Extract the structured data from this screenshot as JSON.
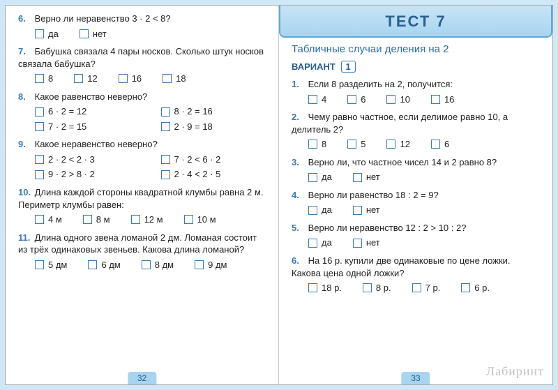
{
  "left": {
    "pagenum": "32",
    "q6": {
      "num": "6.",
      "text": "Верно ли неравенство 3 · 2 < 8?",
      "a": "да",
      "b": "нет"
    },
    "q7": {
      "num": "7.",
      "text": "Бабушка связала 4 пары носков. Сколько штук носков связала бабушка?",
      "a": "8",
      "b": "12",
      "c": "16",
      "d": "18"
    },
    "q8": {
      "num": "8.",
      "text": "Какое равенство неверно?",
      "a": "6 · 2 = 12",
      "b": "8 · 2 = 16",
      "c": "7 · 2 = 15",
      "d": "2 · 9 = 18"
    },
    "q9": {
      "num": "9.",
      "text": "Какое неравенство неверно?",
      "a": "2 · 2 < 2 · 3",
      "b": "7 · 2 < 6 · 2",
      "c": "9 · 2 > 8 · 2",
      "d": "2 · 4 < 2 · 5"
    },
    "q10": {
      "num": "10.",
      "text": "Длина каждой стороны квадратной клумбы равна 2 м. Периметр клумбы равен:",
      "a": "4 м",
      "b": "8 м",
      "c": "12 м",
      "d": "10 м"
    },
    "q11": {
      "num": "11.",
      "text": "Длина одного звена ломаной 2 дм. Ломаная состоит из трёх одинаковых звеньев. Какова длина ломаной?",
      "a": "5 дм",
      "b": "6 дм",
      "c": "8 дм",
      "d": "9 дм"
    }
  },
  "right": {
    "pagenum": "33",
    "header": "ТЕСТ 7",
    "subtitle": "Табличные случаи деления на 2",
    "variant_label": "ВАРИАНТ",
    "variant_num": "1",
    "q1": {
      "num": "1.",
      "text": "Если 8 разделить на 2, получится:",
      "a": "4",
      "b": "6",
      "c": "10",
      "d": "16"
    },
    "q2": {
      "num": "2.",
      "text": "Чему равно частное, если делимое равно 10, а делитель 2?",
      "a": "8",
      "b": "5",
      "c": "12",
      "d": "6"
    },
    "q3": {
      "num": "3.",
      "text": "Верно ли, что частное чисел 14 и 2 равно 8?",
      "a": "да",
      "b": "нет"
    },
    "q4": {
      "num": "4.",
      "text": "Верно ли равенство 18 : 2 = 9?",
      "a": "да",
      "b": "нет"
    },
    "q5": {
      "num": "5.",
      "text": "Верно ли неравенство 12 : 2 > 10 : 2?",
      "a": "да",
      "b": "нет"
    },
    "q6": {
      "num": "6.",
      "text": "На 16 р. купили две одинаковые по цене ложки. Какова цена одной ложки?",
      "a": "18 р.",
      "b": "8 р.",
      "c": "7 р.",
      "d": "6 р."
    }
  },
  "watermark": "Лабиринт"
}
